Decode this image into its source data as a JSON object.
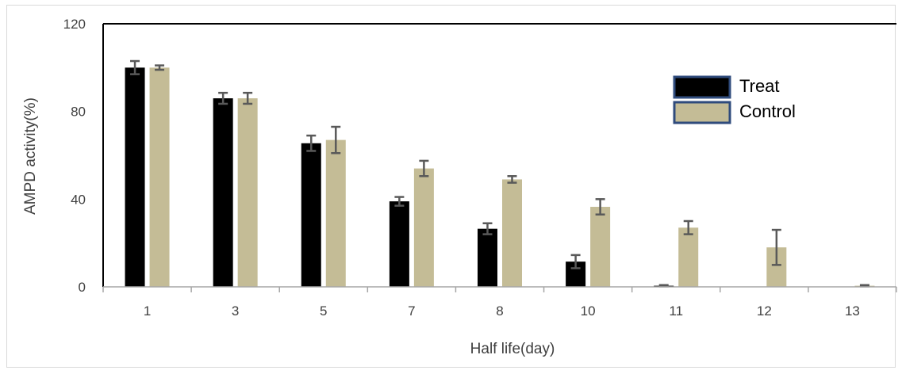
{
  "chart_data": {
    "type": "bar",
    "title": "",
    "xlabel": "Half life(day)",
    "ylabel": "AMPD activity(%)",
    "ylim": [
      0,
      120
    ],
    "yticks": [
      0,
      40,
      80,
      120
    ],
    "grid": false,
    "legend_position": "top-right",
    "categories": [
      "1",
      "3",
      "5",
      "7",
      "8",
      "10",
      "11",
      "12",
      "13"
    ],
    "series": [
      {
        "name": "Treat",
        "color": "#000000",
        "legend_border": "#2f4b7c",
        "values": [
          100,
          86,
          65.5,
          39,
          26.5,
          11.5,
          0.5,
          0,
          0
        ],
        "errors": [
          3,
          2.5,
          3.5,
          2,
          2.5,
          3,
          0.3,
          0,
          0
        ]
      },
      {
        "name": "Control",
        "color": "#c4bc96",
        "legend_border": "#2f4b7c",
        "values": [
          100,
          86,
          67,
          54,
          49,
          36.5,
          27,
          18,
          0.5
        ],
        "errors": [
          1,
          2.5,
          6,
          3.5,
          1.5,
          3.5,
          3,
          8,
          0.3
        ]
      }
    ]
  }
}
